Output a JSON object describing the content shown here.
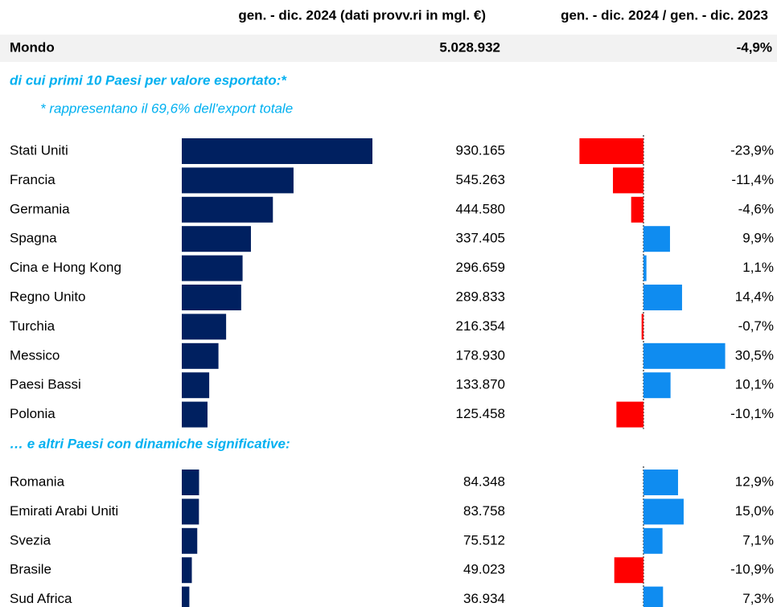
{
  "chart_data": {
    "type": "bar",
    "columns": [
      "gen. - dic. 2024 (dati provv.ri in mgl. €)",
      "gen. - dic. 2024 / gen. - dic. 2023"
    ],
    "total": {
      "name": "Mondo",
      "value": 5028932,
      "value_label": "5.028.932",
      "change": -4.9,
      "change_label": "-4,9%"
    },
    "color": "#002060",
    "positive_color": "#0f8cf0",
    "negative_color": "#ff0000",
    "sections": [
      {
        "title": "di cui primi 10 Paesi per valore esportato:*",
        "note": "* rappresentano il 69,6% dell'export totale",
        "categories": [
          "Stati Uniti",
          "Francia",
          "Germania",
          "Spagna",
          "Cina e Hong Kong",
          "Regno Unito",
          "Turchia",
          "Messico",
          "Paesi Bassi",
          "Polonia"
        ],
        "values": [
          930165,
          545263,
          444580,
          337405,
          296659,
          289833,
          216354,
          178930,
          133870,
          125458
        ],
        "value_labels": [
          "930.165",
          "545.263",
          "444.580",
          "337.405",
          "296.659",
          "289.833",
          "216.354",
          "178.930",
          "133.870",
          "125.458"
        ],
        "changes": [
          -23.9,
          -11.4,
          -4.6,
          9.9,
          1.1,
          14.4,
          -0.7,
          30.5,
          10.1,
          -10.1
        ],
        "change_labels": [
          "-23,9%",
          "-11,4%",
          "-4,6%",
          "9,9%",
          "1,1%",
          "14,4%",
          "-0,7%",
          "30,5%",
          "10,1%",
          "-10,1%"
        ]
      },
      {
        "title": "… e altri Paesi con dinamiche significative:",
        "categories": [
          "Romania",
          "Emirati Arabi Uniti",
          "Svezia",
          "Brasile",
          "Sud Africa"
        ],
        "values": [
          84348,
          83758,
          75512,
          49023,
          36934
        ],
        "value_labels": [
          "84.348",
          "83.758",
          "75.512",
          "49.023",
          "36.934"
        ],
        "changes": [
          12.9,
          15.0,
          7.1,
          -10.9,
          7.3
        ],
        "change_labels": [
          "12,9%",
          "15,0%",
          "7,1%",
          "-10,9%",
          "7,3%"
        ]
      }
    ]
  }
}
